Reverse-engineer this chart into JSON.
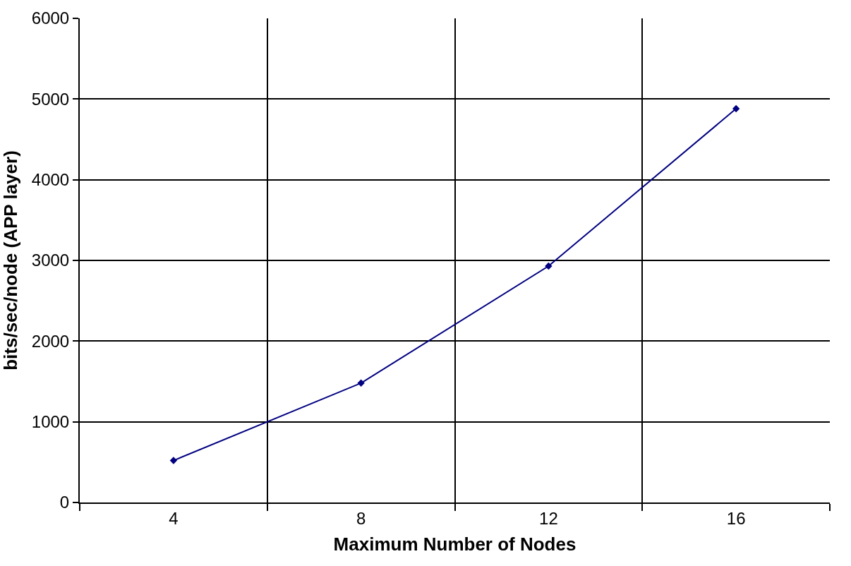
{
  "chart_data": {
    "type": "line",
    "xlabel": "Maximum Number of Nodes",
    "ylabel": "bits/sec/node (APP layer)",
    "categories": [
      "4",
      "8",
      "12",
      "16"
    ],
    "series": [
      {
        "color": "#000080",
        "values": [
          520,
          1480,
          2930,
          4880
        ]
      }
    ],
    "ylim": [
      0,
      6000
    ],
    "yticks": [
      0,
      1000,
      2000,
      3000,
      4000,
      5000,
      6000
    ],
    "grid": true,
    "marker": "diamond",
    "line_style": "solid"
  }
}
